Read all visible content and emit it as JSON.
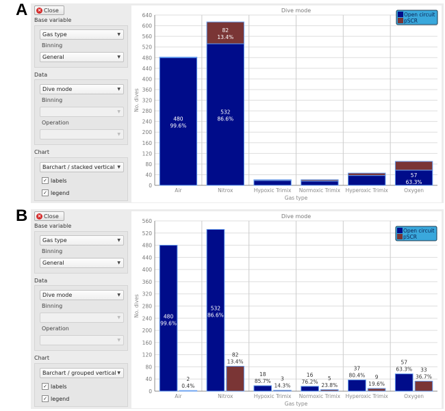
{
  "panels": [
    {
      "label": "A",
      "sidebar": {
        "close": "Close",
        "base_variable": "Base variable",
        "base_value": "Gas type",
        "binning_label": "Binning",
        "binning_value": "General",
        "data": "Data",
        "data_value": "Dive mode",
        "data_binning_label": "Binning",
        "operation_label": "Operation",
        "chart": "Chart",
        "chart_type": "Barchart / stacked vertical",
        "labels": "labels",
        "legend": "legend",
        "labels_checked": true,
        "legend_checked": true
      }
    },
    {
      "label": "B",
      "sidebar": {
        "close": "Close",
        "base_variable": "Base variable",
        "base_value": "Gas type",
        "binning_label": "Binning",
        "binning_value": "General",
        "data": "Data",
        "data_value": "Dive mode",
        "data_binning_label": "Binning",
        "operation_label": "Operation",
        "chart": "Chart",
        "chart_type": "Barchart / grouped vertical",
        "labels": "labels",
        "legend": "legend",
        "labels_checked": true,
        "legend_checked": true
      }
    }
  ],
  "chart_data": [
    {
      "type": "bar",
      "mode": "stacked",
      "title": "Dive mode",
      "xlabel": "Gas type",
      "ylabel": "No. dives",
      "ylim": [
        0,
        640
      ],
      "yticks": [
        0,
        40,
        80,
        120,
        160,
        200,
        240,
        280,
        320,
        360,
        400,
        440,
        480,
        520,
        560,
        600,
        640
      ],
      "categories": [
        "Air",
        "Nitrox",
        "Hypoxic Trimix",
        "Normoxic Trimix",
        "Hyperoxic Trimix",
        "Oxygen"
      ],
      "series": [
        {
          "name": "Open circuit",
          "color": "#000c8a",
          "values": [
            480,
            532,
            18,
            16,
            37,
            57
          ],
          "data_labels": [
            "99.6%",
            "86.6%",
            null,
            null,
            null,
            "63.3%"
          ]
        },
        {
          "name": "pSCR",
          "color": "#7a3535",
          "values": [
            2,
            82,
            3,
            5,
            9,
            33
          ],
          "data_labels": [
            null,
            "13.4%",
            null,
            null,
            null,
            null
          ]
        }
      ],
      "grid": true,
      "legend": "top-right"
    },
    {
      "type": "bar",
      "mode": "grouped",
      "title": "Dive mode",
      "xlabel": "Gas type",
      "ylabel": "No. dives",
      "ylim": [
        0,
        560
      ],
      "yticks": [
        0,
        40,
        80,
        120,
        160,
        200,
        240,
        280,
        320,
        360,
        400,
        440,
        480,
        520,
        560
      ],
      "categories": [
        "Air",
        "Nitrox",
        "Hypoxic Trimix",
        "Normoxic Trimix",
        "Hyperoxic Trimix",
        "Oxygen"
      ],
      "series": [
        {
          "name": "Open circuit",
          "color": "#000c8a",
          "values": [
            480,
            532,
            18,
            16,
            37,
            57
          ],
          "data_labels": [
            "99.6%",
            "86.6%",
            "85.7%",
            "76.2%",
            "80.4%",
            "63.3%"
          ]
        },
        {
          "name": "pSCR",
          "color": "#7a3535",
          "values": [
            2,
            82,
            3,
            5,
            9,
            33
          ],
          "data_labels": [
            "0.4%",
            "13.4%",
            "14.3%",
            "23.8%",
            "19.6%",
            "36.7%"
          ]
        }
      ],
      "grid": true,
      "legend": "top-right"
    }
  ]
}
